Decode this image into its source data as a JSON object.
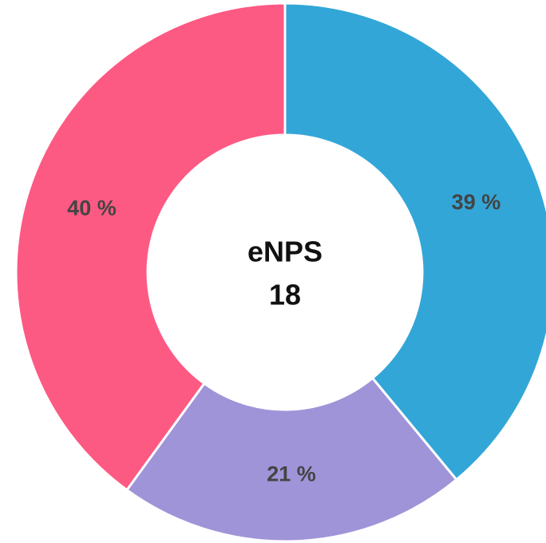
{
  "chart_data": {
    "type": "donut",
    "categories": [
      null,
      null,
      null
    ],
    "values": [
      39,
      21,
      40
    ],
    "value_labels": [
      "39 %",
      "21 %",
      "40 %"
    ],
    "colors": [
      "#33a6d8",
      "#9f94d8",
      "#fd5a83"
    ],
    "center_label": "eNPS",
    "center_value": 18
  }
}
